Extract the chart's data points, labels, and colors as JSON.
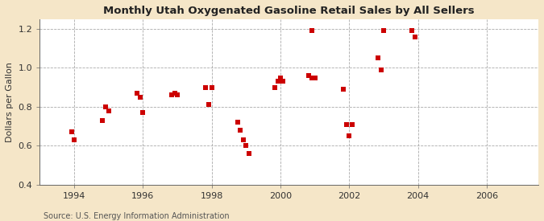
{
  "title": "Monthly Utah Oxygenated Gasoline Retail Sales by All Sellers",
  "ylabel": "Dollars per Gallon",
  "source": "Source: U.S. Energy Information Administration",
  "background_color": "#f5e6c8",
  "plot_bg_color": "#ffffff",
  "marker_color": "#cc0000",
  "marker": "s",
  "marker_size": 16,
  "xlim": [
    1993.0,
    2007.5
  ],
  "ylim": [
    0.4,
    1.25
  ],
  "xticks": [
    1994,
    1996,
    1998,
    2000,
    2002,
    2004,
    2006
  ],
  "yticks": [
    0.4,
    0.6,
    0.8,
    1.0,
    1.2
  ],
  "data": [
    [
      1993.92,
      0.67
    ],
    [
      1994.0,
      0.63
    ],
    [
      1994.83,
      0.73
    ],
    [
      1994.92,
      0.8
    ],
    [
      1995.0,
      0.78
    ],
    [
      1995.83,
      0.87
    ],
    [
      1995.92,
      0.85
    ],
    [
      1996.0,
      0.77
    ],
    [
      1996.83,
      0.86
    ],
    [
      1996.92,
      0.87
    ],
    [
      1997.0,
      0.86
    ],
    [
      1997.83,
      0.9
    ],
    [
      1997.92,
      0.81
    ],
    [
      1998.0,
      0.9
    ],
    [
      1998.75,
      0.72
    ],
    [
      1998.83,
      0.68
    ],
    [
      1998.92,
      0.63
    ],
    [
      1999.0,
      0.6
    ],
    [
      1999.08,
      0.56
    ],
    [
      1999.83,
      0.9
    ],
    [
      1999.92,
      0.93
    ],
    [
      2000.0,
      0.95
    ],
    [
      2000.08,
      0.93
    ],
    [
      2000.83,
      0.96
    ],
    [
      2000.92,
      0.95
    ],
    [
      2000.92,
      1.19
    ],
    [
      2001.0,
      0.95
    ],
    [
      2001.83,
      0.89
    ],
    [
      2001.92,
      0.71
    ],
    [
      2002.0,
      0.65
    ],
    [
      2002.08,
      0.71
    ],
    [
      2002.83,
      1.05
    ],
    [
      2002.92,
      0.99
    ],
    [
      2003.0,
      1.19
    ],
    [
      2003.83,
      1.19
    ],
    [
      2003.92,
      1.16
    ]
  ]
}
